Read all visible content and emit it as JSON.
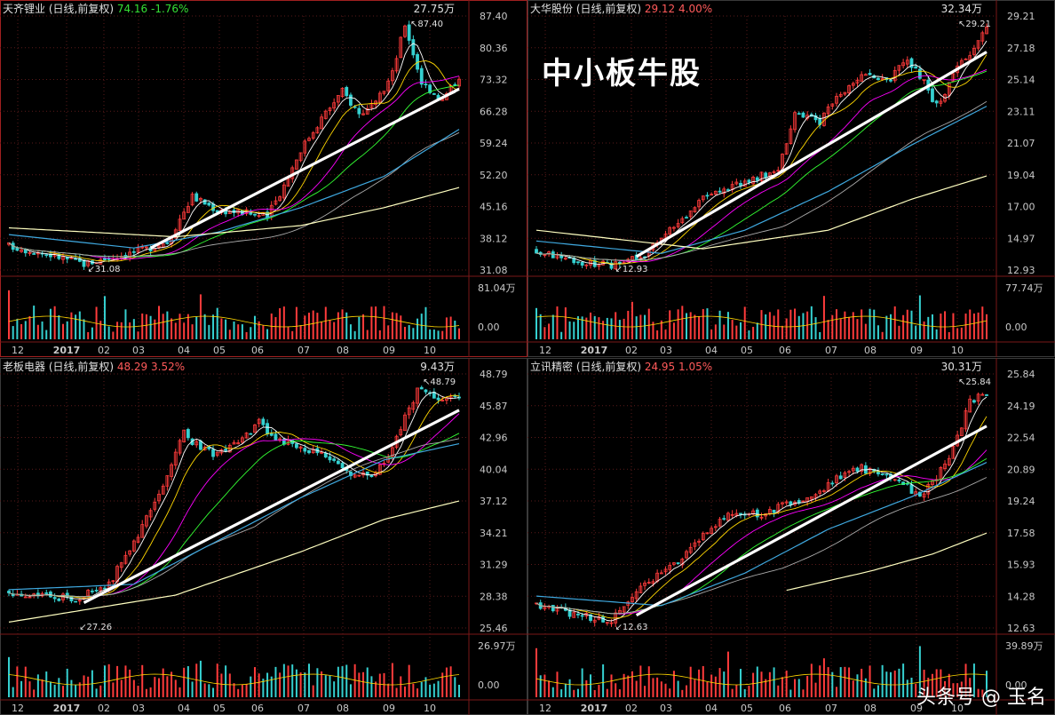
{
  "overlay_title": "中小板牛股",
  "watermark": "头条号 @ 玉名",
  "colors": {
    "up": "#ff3b3b",
    "down": "#35d0d0",
    "trend": "#ffffff",
    "ma5": "#ffffff",
    "ma10": "#ffd700",
    "ma20": "#ff00ff",
    "ma30": "#33ff33",
    "ma60": "#aaaaaa",
    "ma120": "#3fa9e0",
    "ma250": "#ffffc0",
    "frame": "#a02020",
    "axis_text": "#c8c8c8",
    "pos": "#ff5a5a",
    "neg": "#35e035"
  },
  "chart_data": [
    {
      "id": "tianqi",
      "type": "candlestick",
      "name": "天齐锂业",
      "mode": "(日线,前复权)",
      "price": "74.16",
      "change": "-1.76%",
      "change_dir": "down",
      "price_ticks": [
        "87.40",
        "80.36",
        "73.32",
        "66.28",
        "59.24",
        "52.20",
        "45.16",
        "38.12",
        "31.08"
      ],
      "ylim": [
        31.08,
        87.4
      ],
      "vol_max_label": "27.75万",
      "vol_ticks": [
        "81.04万",
        "0.00"
      ],
      "months": [
        "12",
        "2017",
        "02",
        "03",
        "04",
        "05",
        "06",
        "07",
        "08",
        "09",
        "10"
      ],
      "annotations": {
        "high": "87.40",
        "low": "31.08"
      },
      "anchors": [
        [
          0,
          36.5
        ],
        [
          10,
          34.5
        ],
        [
          18,
          32.5
        ],
        [
          25,
          34.0
        ],
        [
          32,
          35.5
        ],
        [
          38,
          37.5
        ],
        [
          44,
          47.5
        ],
        [
          50,
          44.5
        ],
        [
          56,
          44.0
        ],
        [
          62,
          43.0
        ],
        [
          66,
          50.0
        ],
        [
          70,
          58.0
        ],
        [
          75,
          65.0
        ],
        [
          80,
          71.0
        ],
        [
          84,
          66.0
        ],
        [
          88,
          68.0
        ],
        [
          92,
          75.0
        ],
        [
          95,
          86.0
        ],
        [
          99,
          73.0
        ],
        [
          104,
          69.0
        ],
        [
          108,
          74.5
        ]
      ],
      "trend": [
        [
          34,
          36
        ],
        [
          108,
          71.5
        ]
      ],
      "ma120": [
        [
          0,
          39.0
        ],
        [
          30,
          36.0
        ],
        [
          50,
          39.5
        ],
        [
          70,
          45.0
        ],
        [
          90,
          52.0
        ],
        [
          108,
          62.5
        ]
      ],
      "ma250": [
        [
          0,
          40.5
        ],
        [
          40,
          38.5
        ],
        [
          70,
          41.0
        ],
        [
          90,
          45.0
        ],
        [
          108,
          49.5
        ]
      ]
    },
    {
      "id": "dahua",
      "type": "candlestick",
      "name": "大华股份",
      "mode": "(日线,前复权)",
      "price": "29.12",
      "change": "4.00%",
      "change_dir": "up",
      "price_ticks": [
        "29.21",
        "27.18",
        "25.14",
        "23.11",
        "21.07",
        "19.04",
        "17.00",
        "14.97",
        "12.93"
      ],
      "ylim": [
        12.93,
        29.21
      ],
      "vol_max_label": "32.34万",
      "vol_ticks": [
        "77.74万",
        "0.00"
      ],
      "months": [
        "12",
        "2017",
        "02",
        "03",
        "04",
        "05",
        "06",
        "07",
        "08",
        "09",
        "10"
      ],
      "annotations": {
        "high": "29.21",
        "low": "12.93"
      },
      "anchors": [
        [
          0,
          14.2
        ],
        [
          10,
          13.5
        ],
        [
          18,
          13.2
        ],
        [
          26,
          14.0
        ],
        [
          34,
          16.0
        ],
        [
          40,
          17.5
        ],
        [
          48,
          18.5
        ],
        [
          54,
          19.0
        ],
        [
          58,
          19.5
        ],
        [
          62,
          23.0
        ],
        [
          68,
          22.5
        ],
        [
          72,
          24.0
        ],
        [
          78,
          25.5
        ],
        [
          84,
          25.0
        ],
        [
          88,
          26.5
        ],
        [
          92,
          25.5
        ],
        [
          96,
          23.5
        ],
        [
          100,
          25.5
        ],
        [
          104,
          27.0
        ],
        [
          108,
          28.8
        ]
      ],
      "trend": [
        [
          24,
          13.8
        ],
        [
          108,
          27.0
        ]
      ],
      "ma120": [
        [
          0,
          14.8
        ],
        [
          30,
          14.0
        ],
        [
          50,
          15.5
        ],
        [
          70,
          18.0
        ],
        [
          90,
          21.0
        ],
        [
          108,
          23.5
        ]
      ],
      "ma250": [
        [
          0,
          15.5
        ],
        [
          40,
          14.3
        ],
        [
          70,
          15.5
        ],
        [
          90,
          17.5
        ],
        [
          108,
          19.0
        ]
      ]
    },
    {
      "id": "laoban",
      "type": "candlestick",
      "name": "老板电器",
      "mode": "(日线,前复权)",
      "price": "48.29",
      "change": "3.52%",
      "change_dir": "up",
      "price_ticks": [
        "48.79",
        "45.87",
        "42.96",
        "40.04",
        "37.12",
        "34.21",
        "31.29",
        "28.38",
        "25.46"
      ],
      "ylim": [
        25.46,
        48.79
      ],
      "vol_max_label": "9.43万",
      "vol_ticks": [
        "26.97万",
        "0.00"
      ],
      "months": [
        "12",
        "2017",
        "02",
        "03",
        "04",
        "05",
        "06",
        "07",
        "08",
        "09",
        "10"
      ],
      "annotations": {
        "high": "48.79",
        "low": "27.26"
      },
      "anchors": [
        [
          0,
          28.8
        ],
        [
          8,
          28.4
        ],
        [
          16,
          28.2
        ],
        [
          24,
          29.5
        ],
        [
          30,
          33.5
        ],
        [
          36,
          37.5
        ],
        [
          42,
          43.5
        ],
        [
          46,
          42.0
        ],
        [
          50,
          41.5
        ],
        [
          56,
          43.0
        ],
        [
          60,
          44.5
        ],
        [
          64,
          43.0
        ],
        [
          70,
          42.0
        ],
        [
          76,
          41.5
        ],
        [
          80,
          40.0
        ],
        [
          86,
          39.5
        ],
        [
          90,
          40.5
        ],
        [
          94,
          44.0
        ],
        [
          98,
          47.5
        ],
        [
          103,
          46.5
        ],
        [
          108,
          47.0
        ]
      ],
      "trend": [
        [
          18,
          27.8
        ],
        [
          108,
          45.6
        ]
      ],
      "ma120": [
        [
          0,
          29.0
        ],
        [
          30,
          29.5
        ],
        [
          50,
          33.5
        ],
        [
          70,
          37.5
        ],
        [
          90,
          41.0
        ],
        [
          108,
          42.5
        ]
      ],
      "ma250": [
        [
          0,
          26.0
        ],
        [
          40,
          28.5
        ],
        [
          70,
          32.5
        ],
        [
          90,
          35.5
        ],
        [
          108,
          37.2
        ]
      ]
    },
    {
      "id": "lixun",
      "type": "candlestick",
      "name": "立讯精密",
      "mode": "(日线,前复权)",
      "price": "24.95",
      "change": "1.05%",
      "change_dir": "up",
      "price_ticks": [
        "25.84",
        "24.19",
        "22.54",
        "20.89",
        "19.24",
        "17.58",
        "15.93",
        "14.28",
        "12.63"
      ],
      "ylim": [
        12.63,
        25.84
      ],
      "vol_max_label": "30.31万",
      "vol_ticks": [
        "39.89万",
        "0.00"
      ],
      "months": [
        "12",
        "2017",
        "02",
        "03",
        "04",
        "05",
        "06",
        "07",
        "08",
        "09",
        "10"
      ],
      "annotations": {
        "high": "25.84",
        "low": "12.63"
      },
      "anchors": [
        [
          0,
          13.9
        ],
        [
          10,
          13.3
        ],
        [
          18,
          13.0
        ],
        [
          24,
          14.5
        ],
        [
          30,
          15.5
        ],
        [
          36,
          16.5
        ],
        [
          42,
          18.0
        ],
        [
          48,
          18.8
        ],
        [
          54,
          18.5
        ],
        [
          60,
          19.2
        ],
        [
          66,
          19.5
        ],
        [
          72,
          20.5
        ],
        [
          78,
          21.0
        ],
        [
          84,
          20.5
        ],
        [
          88,
          20.2
        ],
        [
          92,
          19.5
        ],
        [
          96,
          20.5
        ],
        [
          100,
          22.0
        ],
        [
          104,
          24.5
        ],
        [
          108,
          24.9
        ]
      ],
      "trend": [
        [
          24,
          13.3
        ],
        [
          108,
          23.2
        ]
      ],
      "ma120": [
        [
          0,
          14.3
        ],
        [
          30,
          13.8
        ],
        [
          50,
          15.5
        ],
        [
          70,
          17.8
        ],
        [
          90,
          19.5
        ],
        [
          108,
          21.3
        ]
      ],
      "ma250": [
        [
          60,
          14.6
        ],
        [
          80,
          15.6
        ],
        [
          95,
          16.5
        ],
        [
          108,
          17.6
        ]
      ]
    }
  ]
}
